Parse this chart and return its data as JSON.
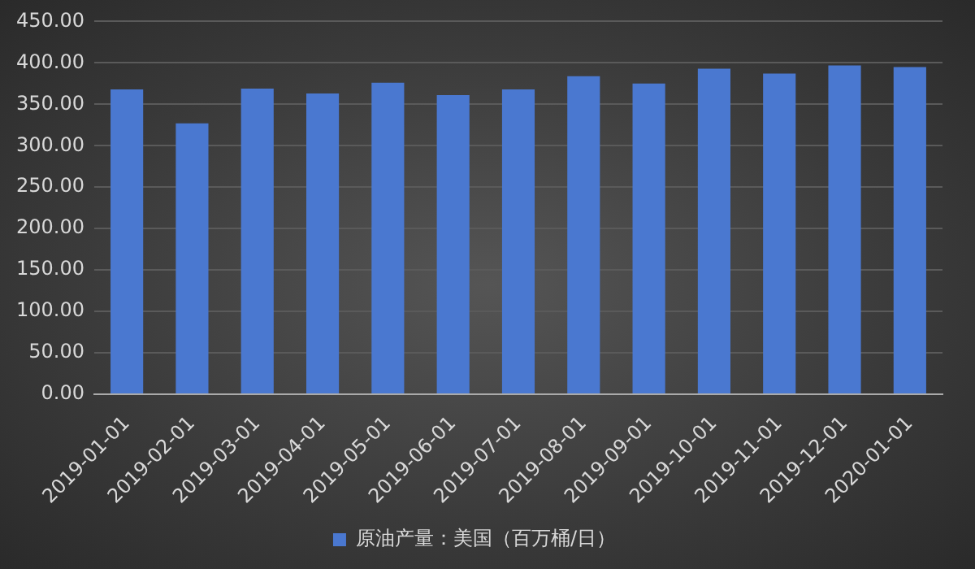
{
  "chart_data": {
    "type": "bar",
    "categories": [
      "2019-01-01",
      "2019-02-01",
      "2019-03-01",
      "2019-04-01",
      "2019-05-01",
      "2019-06-01",
      "2019-07-01",
      "2019-08-01",
      "2019-09-01",
      "2019-10-01",
      "2019-11-01",
      "2019-12-01",
      "2020-01-01"
    ],
    "series": [
      {
        "name": "原油产量：美国（百万桶/日）",
        "color": "#4a78d0",
        "values": [
          368,
          327,
          369,
          363,
          376,
          361,
          368,
          384,
          375,
          393,
          387,
          397,
          395
        ]
      }
    ],
    "ylim": [
      0,
      450
    ],
    "yticks": [
      {
        "value": 0,
        "label": "0.00"
      },
      {
        "value": 50,
        "label": "50.00"
      },
      {
        "value": 100,
        "label": "100.00"
      },
      {
        "value": 150,
        "label": "150.00"
      },
      {
        "value": 200,
        "label": "200.00"
      },
      {
        "value": 250,
        "label": "250.00"
      },
      {
        "value": 300,
        "label": "300.00"
      },
      {
        "value": 350,
        "label": "350.00"
      },
      {
        "value": 400,
        "label": "400.00"
      },
      {
        "value": 450,
        "label": "450.00"
      }
    ],
    "grid": "y",
    "legend": "bottom"
  }
}
